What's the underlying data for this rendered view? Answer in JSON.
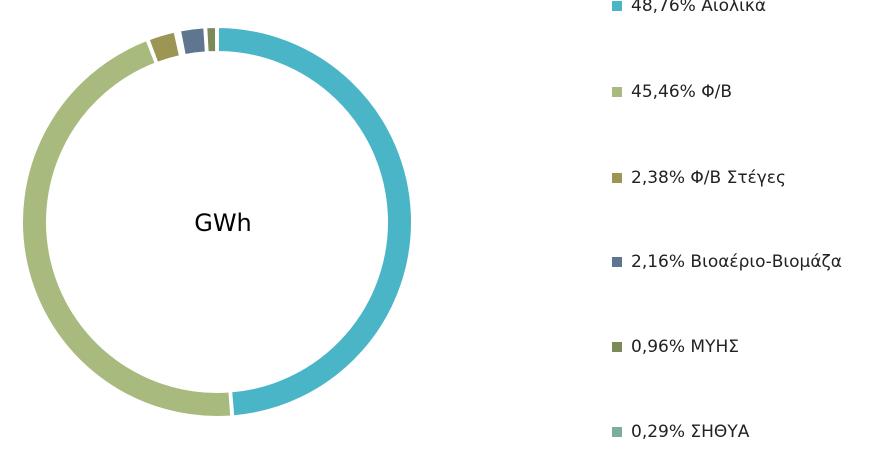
{
  "chart_data": {
    "type": "pie",
    "center_label": "GWh",
    "legend_position": "right",
    "categories": [
      "Αιολικά",
      "Φ/Β",
      "Φ/Β Στέγες",
      "Βιοαέριο-Βιομάζα",
      "ΜΥΗΣ",
      "ΣΗΘΥΑ"
    ],
    "values": [
      48.76,
      45.46,
      2.38,
      2.16,
      0.96,
      0.29
    ],
    "colors": [
      "#4BB5C8",
      "#A9BA7E",
      "#9C9553",
      "#5E768E",
      "#7B8A59",
      "#7AAE9F"
    ],
    "legend": [
      {
        "label": "48,76% Αιολικά",
        "color": "#4BB5C8"
      },
      {
        "label": "45,46% Φ/Β",
        "color": "#A9BA7E"
      },
      {
        "label": "2,38% Φ/Β Στέγες",
        "color": "#9C9553"
      },
      {
        "label": "2,16% Βιοαέριο-Βιομάζα",
        "color": "#5E768E"
      },
      {
        "label": "0,96% ΜΥΗΣ",
        "color": "#7B8A59"
      },
      {
        "label": "0,29% ΣΗΘΥΑ",
        "color": "#7AAE9F"
      }
    ]
  }
}
